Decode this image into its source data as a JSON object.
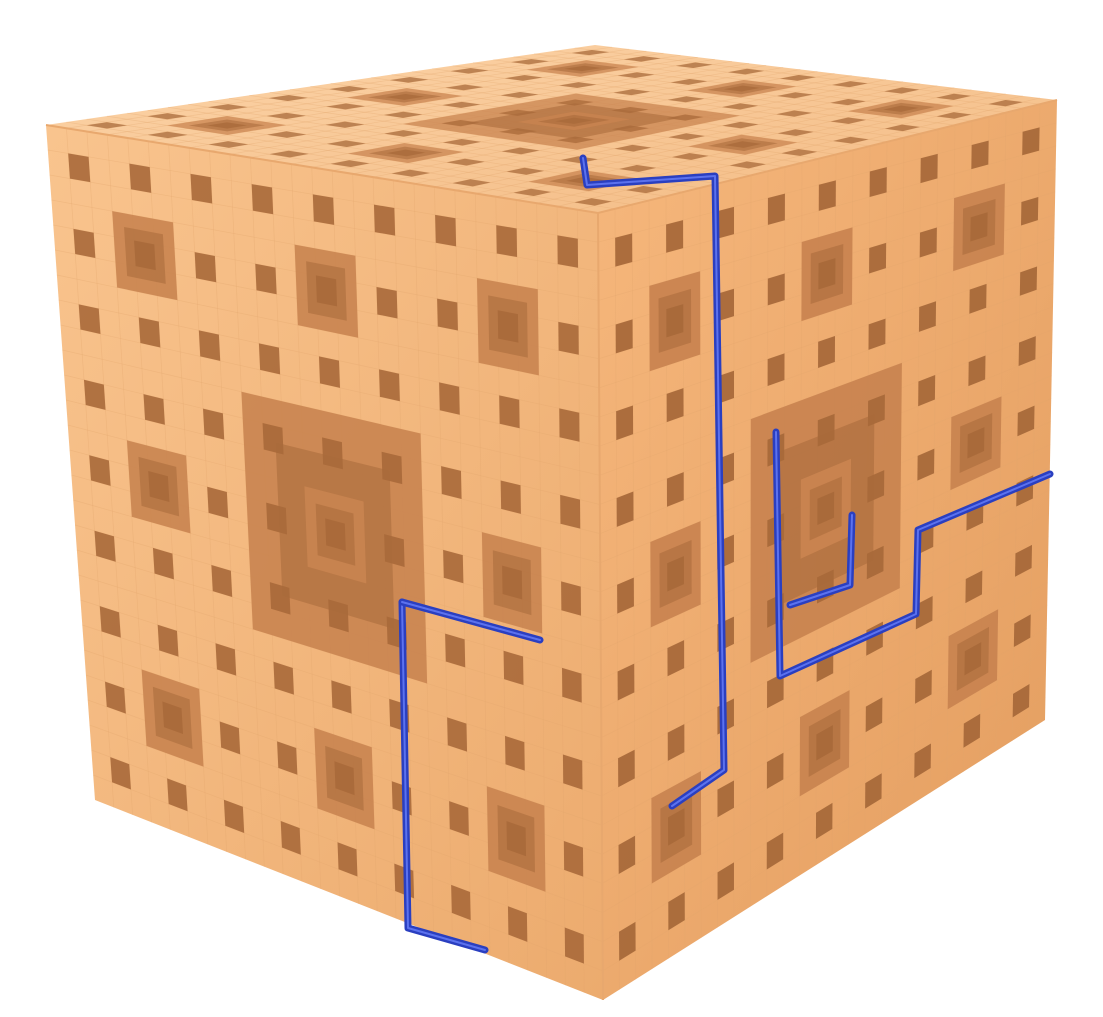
{
  "scene": {
    "subject": "menger-sponge-cube",
    "colors": {
      "background": "#ffffff",
      "face_front_light": "#f7be86",
      "face_front_dark": "#efad70",
      "face_right_light": "#f4b47a",
      "face_right_dark": "#e09a5d",
      "face_top_light": "#fbcf9f",
      "face_top_dark": "#f4bd85",
      "hole_dark": "#a8693a",
      "hole_mid": "#c98450",
      "grid_line": "#e3a56c",
      "path_color": "#2a3fc0",
      "path_highlight": "#5c72ee"
    }
  }
}
